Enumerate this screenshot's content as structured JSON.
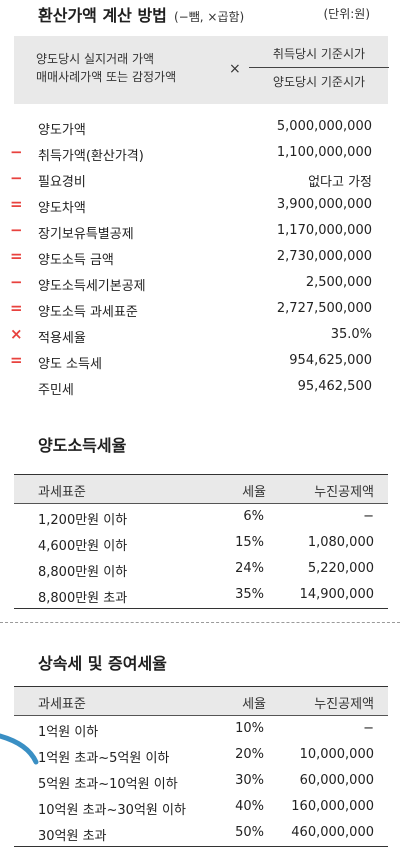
{
  "header": {
    "title": "환산가액 계산 방법",
    "note": "(−뺌, ×곱함)",
    "unit": "(단위:원)"
  },
  "formula": {
    "left_line1": "양도당시 실지거래 가액",
    "left_line2": "매매사례가액 또는 감정가액",
    "operator": "×",
    "numerator": "취득당시 기준시가",
    "denominator": "양도당시 기준시가"
  },
  "calculation": [
    {
      "op": "",
      "label": "양도가액",
      "value": "5,000,000,000"
    },
    {
      "op": "−",
      "label": "취득가액(환산가격)",
      "value": "1,100,000,000"
    },
    {
      "op": "−",
      "label": "필요경비",
      "value": "없다고 가정"
    },
    {
      "op": "=",
      "label": "양도차액",
      "value": "3,900,000,000"
    },
    {
      "op": "−",
      "label": "장기보유특별공제",
      "value": "1,170,000,000"
    },
    {
      "op": "=",
      "label": "양도소득 금액",
      "value": "2,730,000,000"
    },
    {
      "op": "−",
      "label": "양도소득세기본공제",
      "value": "2,500,000"
    },
    {
      "op": "=",
      "label": "양도소득 과세표준",
      "value": "2,727,500,000"
    },
    {
      "op": "×",
      "label": "적용세율",
      "value": "35.0%"
    },
    {
      "op": "=",
      "label": "양도 소득세",
      "value": "954,625,000"
    },
    {
      "op": "",
      "label": "주민세",
      "value": "95,462,500"
    }
  ],
  "capital_gains": {
    "title": "양도소득세율",
    "columns": [
      "과세표준",
      "세율",
      "누진공제액"
    ],
    "rows": [
      {
        "base": "1,200만원 이하",
        "rate": "6%",
        "deduction": "−"
      },
      {
        "base": "4,600만원 이하",
        "rate": "15%",
        "deduction": "1,080,000"
      },
      {
        "base": "8,800만원 이하",
        "rate": "24%",
        "deduction": "5,220,000"
      },
      {
        "base": "8,800만원 초과",
        "rate": "35%",
        "deduction": "14,900,000"
      }
    ]
  },
  "inheritance_gift": {
    "title": "상속세 및 증여세율",
    "columns": [
      "과세표준",
      "세율",
      "누진공제액"
    ],
    "rows": [
      {
        "base": "1억원 이하",
        "rate": "10%",
        "deduction": "−"
      },
      {
        "base": "1억원 초과~5억원 이하",
        "rate": "20%",
        "deduction": "10,000,000"
      },
      {
        "base": "5억원 초과~10억원 이하",
        "rate": "30%",
        "deduction": "60,000,000"
      },
      {
        "base": "10억원 초과~30억원 이하",
        "rate": "40%",
        "deduction": "160,000,000"
      },
      {
        "base": "30억원 초과",
        "rate": "50%",
        "deduction": "460,000,000"
      }
    ]
  },
  "colors": {
    "operator": "#e8423e",
    "header_bg": "#e9e9e9",
    "accent_curve": "#3a8fc4"
  }
}
